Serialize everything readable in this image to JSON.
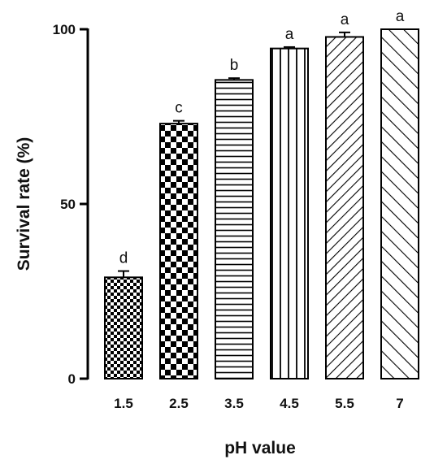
{
  "chart_data": {
    "type": "bar",
    "title": "",
    "xlabel": "pH value",
    "ylabel": "Survival rate (%)",
    "categories": [
      "1.5",
      "2.5",
      "3.5",
      "4.5",
      "5.5",
      "7"
    ],
    "values": [
      29.0,
      73.0,
      85.5,
      94.5,
      97.8,
      100.0
    ],
    "errors": [
      1.8,
      0.8,
      0.5,
      0.4,
      1.3,
      0.0
    ],
    "significance_labels": [
      "d",
      "c",
      "b",
      "a",
      "a",
      "a"
    ],
    "patterns": [
      "small-checker",
      "large-checker",
      "horizontal-lines",
      "vertical-lines",
      "diagonal-dense",
      "diagonal-wide"
    ],
    "ylim": [
      0,
      100
    ],
    "yticks": [
      0,
      50,
      100
    ],
    "grid": false,
    "legend": "none"
  }
}
